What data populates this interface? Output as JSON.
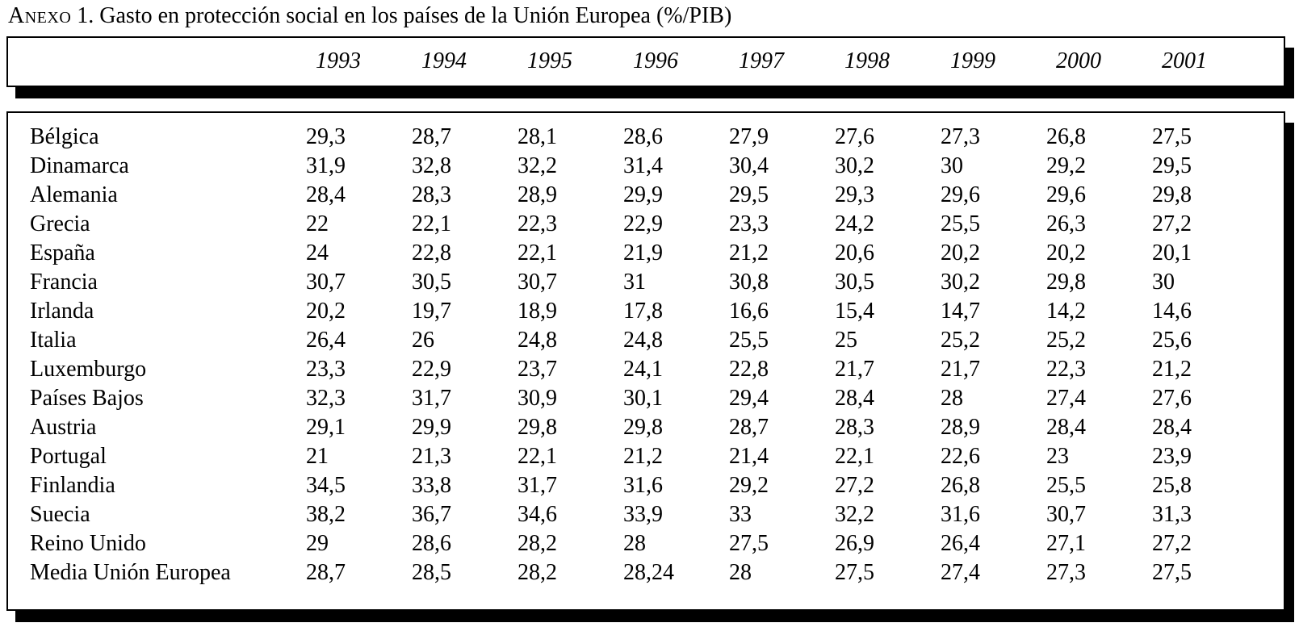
{
  "title": {
    "prefix": "Anexo",
    "rest": " 1. Gasto en protección social en los países de la Unión Europea (%/PIB)"
  },
  "table": {
    "unit": "%/PIB",
    "years": [
      "1993",
      "1994",
      "1995",
      "1996",
      "1997",
      "1998",
      "1999",
      "2000",
      "2001"
    ],
    "rows": [
      {
        "country": "Bélgica",
        "values": [
          "29,3",
          "28,7",
          "28,1",
          "28,6",
          "27,9",
          "27,6",
          "27,3",
          "26,8",
          "27,5"
        ]
      },
      {
        "country": "Dinamarca",
        "values": [
          "31,9",
          "32,8",
          "32,2",
          "31,4",
          "30,4",
          "30,2",
          "30",
          "29,2",
          "29,5"
        ]
      },
      {
        "country": "Alemania",
        "values": [
          "28,4",
          "28,3",
          "28,9",
          "29,9",
          "29,5",
          "29,3",
          "29,6",
          "29,6",
          "29,8"
        ]
      },
      {
        "country": "Grecia",
        "values": [
          "22",
          "22,1",
          "22,3",
          "22,9",
          "23,3",
          "24,2",
          "25,5",
          "26,3",
          "27,2"
        ]
      },
      {
        "country": "España",
        "values": [
          "24",
          "22,8",
          "22,1",
          "21,9",
          "21,2",
          "20,6",
          "20,2",
          "20,2",
          "20,1"
        ]
      },
      {
        "country": "Francia",
        "values": [
          "30,7",
          "30,5",
          "30,7",
          "31",
          "30,8",
          "30,5",
          "30,2",
          "29,8",
          "30"
        ]
      },
      {
        "country": "Irlanda",
        "values": [
          "20,2",
          "19,7",
          "18,9",
          "17,8",
          "16,6",
          "15,4",
          "14,7",
          "14,2",
          "14,6"
        ]
      },
      {
        "country": "Italia",
        "values": [
          "26,4",
          "26",
          "24,8",
          "24,8",
          "25,5",
          "25",
          "25,2",
          "25,2",
          "25,6"
        ]
      },
      {
        "country": "Luxemburgo",
        "values": [
          "23,3",
          "22,9",
          "23,7",
          "24,1",
          "22,8",
          "21,7",
          "21,7",
          "22,3",
          "21,2"
        ]
      },
      {
        "country": "Países Bajos",
        "values": [
          "32,3",
          "31,7",
          "30,9",
          "30,1",
          "29,4",
          "28,4",
          "28",
          "27,4",
          "27,6"
        ]
      },
      {
        "country": "Austria",
        "values": [
          "29,1",
          "29,9",
          "29,8",
          "29,8",
          "28,7",
          "28,3",
          "28,9",
          "28,4",
          "28,4"
        ]
      },
      {
        "country": "Portugal",
        "values": [
          "21",
          "21,3",
          "22,1",
          "21,2",
          "21,4",
          "22,1",
          "22,6",
          "23",
          "23,9"
        ]
      },
      {
        "country": "Finlandia",
        "values": [
          "34,5",
          "33,8",
          "31,7",
          "31,6",
          "29,2",
          "27,2",
          "26,8",
          "25,5",
          "25,8"
        ]
      },
      {
        "country": "Suecia",
        "values": [
          "38,2",
          "36,7",
          "34,6",
          "33,9",
          "33",
          "32,2",
          "31,6",
          "30,7",
          "31,3"
        ]
      },
      {
        "country": "Reino Unido",
        "values": [
          "29",
          "28,6",
          "28,2",
          "28",
          "27,5",
          "26,9",
          "26,4",
          "27,1",
          "27,2"
        ]
      },
      {
        "country": "Media Unión Europea",
        "values": [
          "28,7",
          "28,5",
          "28,2",
          "28,24",
          "28",
          "27,5",
          "27,4",
          "27,3",
          "27,5"
        ]
      }
    ]
  }
}
